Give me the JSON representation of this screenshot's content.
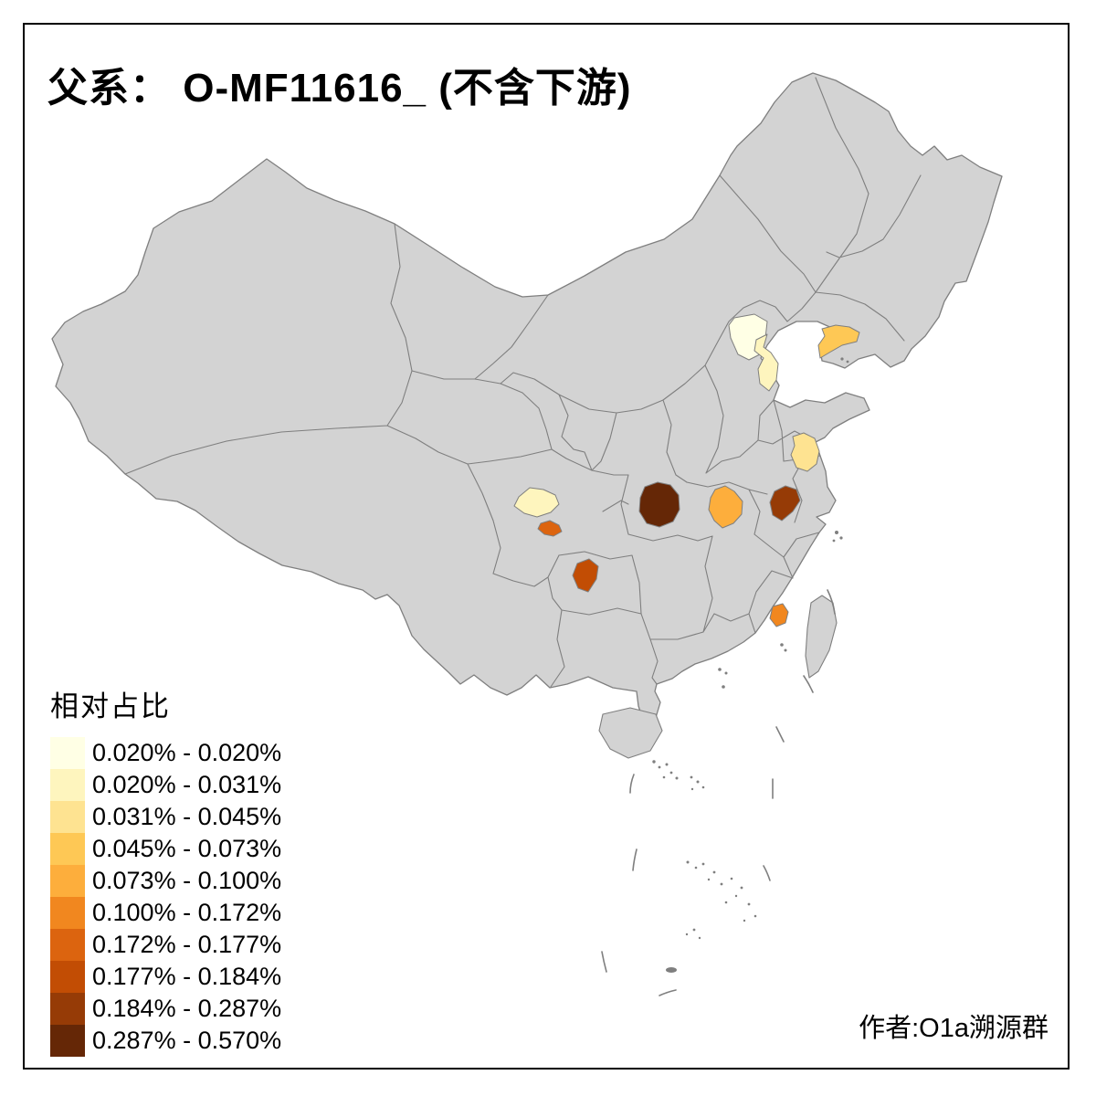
{
  "title": {
    "prefix": "父系：",
    "code": " O-MF11616_",
    "suffix": " (不含下游)"
  },
  "legend": {
    "title": "相对占比",
    "items": [
      {
        "label": "0.020% - 0.020%",
        "color": "#FFFFE5"
      },
      {
        "label": "0.020% - 0.031%",
        "color": "#FEF5BE"
      },
      {
        "label": "0.031% - 0.045%",
        "color": "#FEE391"
      },
      {
        "label": "0.045% - 0.073%",
        "color": "#FEC855"
      },
      {
        "label": "0.073% - 0.100%",
        "color": "#FDAE3C"
      },
      {
        "label": "0.100% - 0.172%",
        "color": "#F1871F"
      },
      {
        "label": "0.172% - 0.177%",
        "color": "#DC640F"
      },
      {
        "label": "0.177% - 0.184%",
        "color": "#C24D04"
      },
      {
        "label": "0.184% - 0.287%",
        "color": "#963B06"
      },
      {
        "label": "0.287% - 0.570%",
        "color": "#652706"
      }
    ]
  },
  "author": "作者:O1a溯源群",
  "map": {
    "colors": {
      "sea": "#FFFFFF",
      "land": "#D3D3D3",
      "border": "#7F7F7F",
      "frame": "#000000"
    },
    "regions": {
      "beijing": "#FFFFE5",
      "tianjin": "#FEF5BE",
      "dalian": "#FEC855",
      "north-jiangsu": "#FEE391",
      "central-hubei": "#652706",
      "east-hubei": "#FDAE3C",
      "central-anhui": "#963B06",
      "west-sichuan": "#FEF5BE",
      "chengdu-area": "#DC640F",
      "north-guizhou": "#C24D04",
      "south-fujian": "#F1871F"
    }
  },
  "chart_data": {
    "type": "heatmap",
    "subtype": "choropleth-map-of-china",
    "title": "父系： O-MF11616_ (不含下游)",
    "legend_title": "相对占比",
    "legend_position": "bottom-left",
    "bins": [
      {
        "range": "0.020% - 0.020%",
        "color": "#FFFFE5"
      },
      {
        "range": "0.020% - 0.031%",
        "color": "#FEF5BE"
      },
      {
        "range": "0.031% - 0.045%",
        "color": "#FEE391"
      },
      {
        "range": "0.045% - 0.073%",
        "color": "#FEC855"
      },
      {
        "range": "0.073% - 0.100%",
        "color": "#FDAE3C"
      },
      {
        "range": "0.100% - 0.172%",
        "color": "#F1871F"
      },
      {
        "range": "0.172% - 0.177%",
        "color": "#DC640F"
      },
      {
        "range": "0.177% - 0.184%",
        "color": "#C24D04"
      },
      {
        "range": "0.184% - 0.287%",
        "color": "#963B06"
      },
      {
        "range": "0.287% - 0.570%",
        "color": "#652706"
      }
    ],
    "highlighted_regions": [
      {
        "id": "beijing",
        "bin": "0.020% - 0.020%"
      },
      {
        "id": "tianjin",
        "bin": "0.020% - 0.031%"
      },
      {
        "id": "west-sichuan",
        "bin": "0.020% - 0.031%"
      },
      {
        "id": "north-jiangsu",
        "bin": "0.031% - 0.045%"
      },
      {
        "id": "dalian",
        "bin": "0.045% - 0.073%"
      },
      {
        "id": "east-hubei",
        "bin": "0.073% - 0.100%"
      },
      {
        "id": "south-fujian",
        "bin": "0.100% - 0.172%"
      },
      {
        "id": "chengdu-area",
        "bin": "0.172% - 0.177%"
      },
      {
        "id": "north-guizhou",
        "bin": "0.177% - 0.184%"
      },
      {
        "id": "central-anhui",
        "bin": "0.184% - 0.287%"
      },
      {
        "id": "central-hubei",
        "bin": "0.287% - 0.570%"
      }
    ],
    "no_data_color": "#D3D3D3"
  }
}
